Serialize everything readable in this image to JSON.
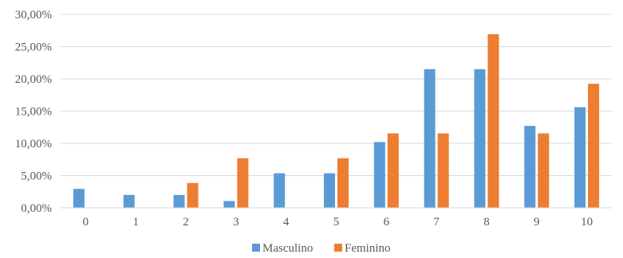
{
  "chart_data": {
    "type": "bar",
    "categories": [
      "0",
      "1",
      "2",
      "3",
      "4",
      "5",
      "6",
      "7",
      "8",
      "9",
      "10"
    ],
    "series": [
      {
        "name": "Masculino",
        "color": "#5B9BD5",
        "values": [
          2.94,
          2.0,
          2.0,
          1.05,
          5.36,
          5.36,
          10.2,
          21.5,
          21.5,
          12.7,
          15.6
        ]
      },
      {
        "name": "Feminino",
        "color": "#ED7D31",
        "values": [
          0,
          0,
          3.85,
          7.69,
          0,
          7.69,
          11.54,
          11.54,
          26.92,
          11.54,
          19.23
        ]
      }
    ],
    "y_ticks": [
      "0,00%",
      "5,00%",
      "10,00%",
      "15,00%",
      "20,00%",
      "25,00%",
      "30,00%"
    ],
    "ylim": [
      0,
      30
    ],
    "grid": true,
    "legend_position": "bottom"
  }
}
